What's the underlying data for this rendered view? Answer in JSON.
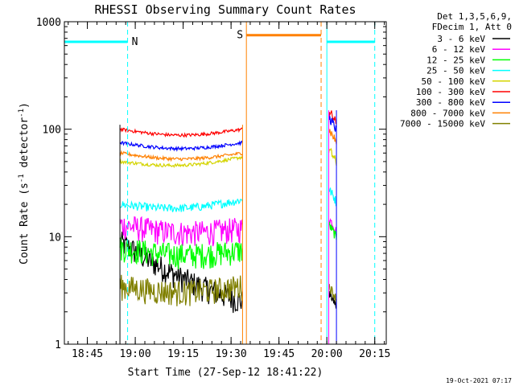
{
  "chart_data": {
    "type": "line",
    "title": "RHESSI Observing Summary Count Rates",
    "xlabel": "Start Time (27-Sep-12 18:41:22)",
    "ylabel_main": "Count Rate (s",
    "ylabel_sup1": "-1",
    "ylabel_mid": " detector",
    "ylabel_sup2": "-1",
    "ylabel_end": ")",
    "y_scale": "log",
    "ylim": [
      1,
      1000
    ],
    "xlim_minutes": [
      18.63,
      20.31
    ],
    "x_ticks": [
      {
        "label": "18:45",
        "t": 18.75
      },
      {
        "label": "19:00",
        "t": 19.0
      },
      {
        "label": "19:15",
        "t": 19.25
      },
      {
        "label": "19:30",
        "t": 19.5
      },
      {
        "label": "19:45",
        "t": 19.75
      },
      {
        "label": "20:00",
        "t": 20.0
      },
      {
        "label": "20:15",
        "t": 20.25
      }
    ],
    "y_ticks": [
      {
        "label": "1",
        "v": 1
      },
      {
        "label": "10",
        "v": 10
      },
      {
        "label": "100",
        "v": 100
      },
      {
        "label": "1000",
        "v": 1000
      }
    ],
    "legend_header": [
      "Det 1,3,5,6,9,",
      "FDecim 1, Att 0"
    ],
    "legend_placement": "right",
    "series": [
      {
        "name": "3 - 6 keV",
        "color": "#000000",
        "seg1": [
          9,
          2.5
        ],
        "seg2": 3
      },
      {
        "name": "6 - 12 keV",
        "color": "#ff00ff",
        "seg1": [
          13,
          12
        ],
        "seg2": 15
      },
      {
        "name": "12 - 25 keV",
        "color": "#00ff00",
        "seg1": [
          8,
          7.5
        ],
        "seg2": 13
      },
      {
        "name": "25 - 50 keV",
        "color": "#00ffff",
        "seg1": [
          20,
          22
        ],
        "seg2": 28
      },
      {
        "name": "50 - 100 keV",
        "color": "#d4d400",
        "seg1": [
          50,
          55
        ],
        "seg2": 65
      },
      {
        "name": "100 - 300 keV",
        "color": "#ff0000",
        "seg1": [
          100,
          100
        ],
        "seg2": 150
      },
      {
        "name": "300 - 800 keV",
        "color": "#0000ff",
        "seg1": [
          75,
          75
        ],
        "seg2": 130
      },
      {
        "name": "800 - 7000 keV",
        "color": "#ff8000",
        "seg1": [
          60,
          60
        ],
        "seg2": 100
      },
      {
        "name": "7000 - 15000 keV",
        "color": "#808000",
        "seg1": [
          3.5,
          3.5
        ],
        "seg2": 3.5
      }
    ],
    "time_segments": {
      "seg1": [
        18.92,
        19.56
      ],
      "seg2": [
        20.01,
        20.05
      ]
    },
    "flags": [
      {
        "label": "N",
        "color": "#00ffff",
        "start": 18.63,
        "end": 18.96,
        "level": 650
      },
      {
        "label": "S",
        "color": "#ff8000",
        "start": 19.58,
        "end": 19.97,
        "level": 750
      },
      {
        "label": "",
        "color": "#00ffff",
        "start": 20.0,
        "end": 20.25,
        "level": 650
      }
    ],
    "grid": false
  },
  "footer": {
    "timestamp": "19-Oct-2021 07:17"
  }
}
